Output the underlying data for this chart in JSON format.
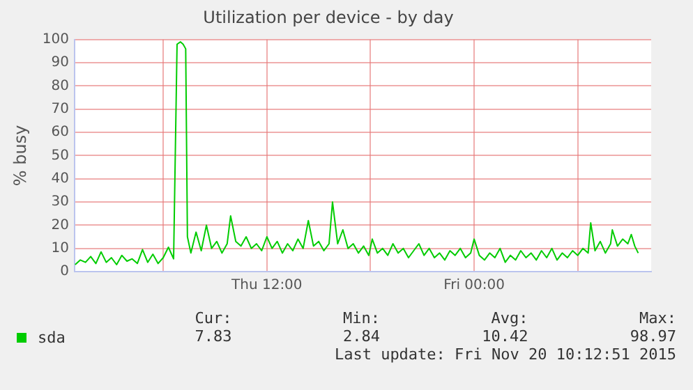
{
  "chart_data": {
    "type": "line",
    "title": "Utilization per device - by day",
    "ylabel": "% busy",
    "xlim": [
      "2015-11-19T00:52",
      "2015-11-20T10:15"
    ],
    "xticks": [
      {
        "value": "2015-11-19T06:00",
        "label": null
      },
      {
        "value": "2015-11-19T12:00",
        "label": "Thu 12:00"
      },
      {
        "value": "2015-11-19T18:00",
        "label": null
      },
      {
        "value": "2015-11-20T00:00",
        "label": "Fri 00:00"
      },
      {
        "value": "2015-11-20T06:00",
        "label": null
      }
    ],
    "ylim": [
      0,
      100
    ],
    "yticks": [
      0,
      10,
      20,
      30,
      40,
      50,
      60,
      70,
      80,
      90,
      100
    ],
    "grid": true,
    "legend": "bottom left",
    "marker": "none",
    "line_style": "solid",
    "series": [
      {
        "name": "sda",
        "color": "#00cc00",
        "x": [
          "2015-11-19T00:54",
          "2015-11-19T01:12",
          "2015-11-19T01:30",
          "2015-11-19T01:48",
          "2015-11-19T02:06",
          "2015-11-19T02:24",
          "2015-11-19T02:42",
          "2015-11-19T03:00",
          "2015-11-19T03:18",
          "2015-11-19T03:36",
          "2015-11-19T03:54",
          "2015-11-19T04:12",
          "2015-11-19T04:30",
          "2015-11-19T04:48",
          "2015-11-19T05:06",
          "2015-11-19T05:24",
          "2015-11-19T05:42",
          "2015-11-19T06:00",
          "2015-11-19T06:18",
          "2015-11-19T06:36",
          "2015-11-19T06:48",
          "2015-11-19T07:00",
          "2015-11-19T07:09",
          "2015-11-19T07:18",
          "2015-11-19T07:24",
          "2015-11-19T07:36",
          "2015-11-19T07:54",
          "2015-11-19T08:12",
          "2015-11-19T08:30",
          "2015-11-19T08:48",
          "2015-11-19T09:06",
          "2015-11-19T09:24",
          "2015-11-19T09:42",
          "2015-11-19T09:54",
          "2015-11-19T10:12",
          "2015-11-19T10:30",
          "2015-11-19T10:48",
          "2015-11-19T11:06",
          "2015-11-19T11:24",
          "2015-11-19T11:42",
          "2015-11-19T12:00",
          "2015-11-19T12:18",
          "2015-11-19T12:36",
          "2015-11-19T12:54",
          "2015-11-19T13:12",
          "2015-11-19T13:30",
          "2015-11-19T13:48",
          "2015-11-19T14:06",
          "2015-11-19T14:24",
          "2015-11-19T14:42",
          "2015-11-19T15:00",
          "2015-11-19T15:18",
          "2015-11-19T15:36",
          "2015-11-19T15:48",
          "2015-11-19T16:06",
          "2015-11-19T16:24",
          "2015-11-19T16:42",
          "2015-11-19T17:00",
          "2015-11-19T17:18",
          "2015-11-19T17:36",
          "2015-11-19T17:54",
          "2015-11-19T18:06",
          "2015-11-19T18:24",
          "2015-11-19T18:42",
          "2015-11-19T19:00",
          "2015-11-19T19:18",
          "2015-11-19T19:36",
          "2015-11-19T19:54",
          "2015-11-19T20:12",
          "2015-11-19T20:30",
          "2015-11-19T20:48",
          "2015-11-19T21:06",
          "2015-11-19T21:24",
          "2015-11-19T21:42",
          "2015-11-19T22:00",
          "2015-11-19T22:18",
          "2015-11-19T22:36",
          "2015-11-19T22:54",
          "2015-11-19T23:12",
          "2015-11-19T23:30",
          "2015-11-19T23:48",
          "2015-11-20T00:00",
          "2015-11-20T00:18",
          "2015-11-20T00:36",
          "2015-11-20T00:54",
          "2015-11-20T01:12",
          "2015-11-20T01:30",
          "2015-11-20T01:48",
          "2015-11-20T02:06",
          "2015-11-20T02:24",
          "2015-11-20T02:42",
          "2015-11-20T03:00",
          "2015-11-20T03:18",
          "2015-11-20T03:36",
          "2015-11-20T03:54",
          "2015-11-20T04:12",
          "2015-11-20T04:30",
          "2015-11-20T04:48",
          "2015-11-20T05:06",
          "2015-11-20T05:24",
          "2015-11-20T05:42",
          "2015-11-20T06:00",
          "2015-11-20T06:18",
          "2015-11-20T06:36",
          "2015-11-20T06:45",
          "2015-11-20T07:00",
          "2015-11-20T07:18",
          "2015-11-20T07:36",
          "2015-11-20T07:54",
          "2015-11-20T08:00",
          "2015-11-20T08:18",
          "2015-11-20T08:36",
          "2015-11-20T08:54",
          "2015-11-20T09:06",
          "2015-11-20T09:18",
          "2015-11-20T09:30"
        ],
        "values": [
          3,
          5,
          4,
          6.5,
          3.5,
          8.5,
          4,
          6,
          3,
          7,
          4.5,
          5.5,
          3.5,
          9.5,
          4,
          7.5,
          3.5,
          6,
          10.5,
          5.5,
          98,
          99,
          98,
          96,
          15,
          8,
          17,
          9,
          20,
          10,
          13,
          8,
          12,
          24,
          13,
          11,
          15,
          10,
          12,
          9,
          15,
          10,
          13,
          8,
          12,
          9,
          14,
          10,
          22,
          11,
          13,
          9,
          12,
          30,
          12,
          18,
          10,
          12,
          8,
          11,
          7,
          14,
          8,
          10,
          7,
          12,
          8,
          10,
          6,
          9,
          12,
          7,
          10,
          6,
          8,
          5,
          9,
          7,
          10,
          6,
          8,
          14,
          7,
          5,
          8,
          6,
          10,
          4,
          7,
          5,
          9,
          6,
          8,
          5,
          9,
          6,
          10,
          5,
          8,
          6,
          9,
          7,
          10,
          8,
          21,
          9,
          13,
          8,
          12,
          18,
          11,
          14,
          12,
          16,
          11,
          8
        ]
      }
    ],
    "annotations": [
      "Cur:",
      "Min:",
      "Avg:",
      "Max:",
      "7.83",
      "2.84",
      "10.42",
      "98.97",
      "Last update: Fri Nov 20 10:12:51 2015"
    ]
  }
}
